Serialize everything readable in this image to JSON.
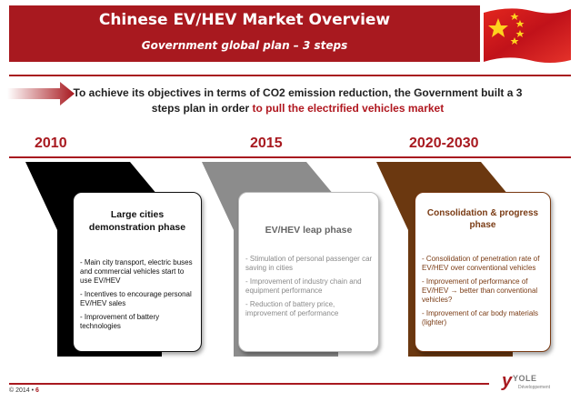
{
  "header": {
    "title": "Chinese EV/HEV Market Overview",
    "subtitle": "Government global plan – 3 steps"
  },
  "objective": {
    "text_start": "To achieve its objectives in terms of CO2 emission reduction, the Government built a 3 steps plan in order",
    "text_highlight": "to pull the electrified vehicles market"
  },
  "timeline": {
    "years": [
      "2010",
      "2015",
      "2020-2030"
    ]
  },
  "phases": [
    {
      "title": "Large cities demonstration phase",
      "bullets": [
        "- Main city transport, electric buses and commercial vehicles start to use EV/HEV",
        "- Incentives to encourage personal EV/HEV sales",
        "- Improvement of battery technologies"
      ]
    },
    {
      "title": "EV/HEV leap phase",
      "bullets": [
        "- Stimulation of personal passenger car saving in cities",
        "- Improvement of industry chain and equipment performance",
        "- Reduction of battery price, improvement of performance"
      ]
    },
    {
      "title": "Consolidation & progress phase",
      "bullets": [
        "- Consolidation of penetration rate of EV/HEV over conventional vehicles",
        "- Improvement of performance of EV/HEV → better than conventional vehicles?",
        "- Improvement of car body materials (lighter)"
      ]
    }
  ],
  "footer": {
    "copyright": "© 2014 •",
    "page_number": "6",
    "logo_name": "YOLE",
    "logo_sub": "Développement"
  },
  "colors": {
    "brand_red": "#a8191f",
    "phase1": "#000000",
    "phase2": "#8c8c8c",
    "phase3": "#6b3810"
  },
  "icons": [
    "arrow-right-icon",
    "china-flag-icon",
    "yole-logo-icon"
  ]
}
